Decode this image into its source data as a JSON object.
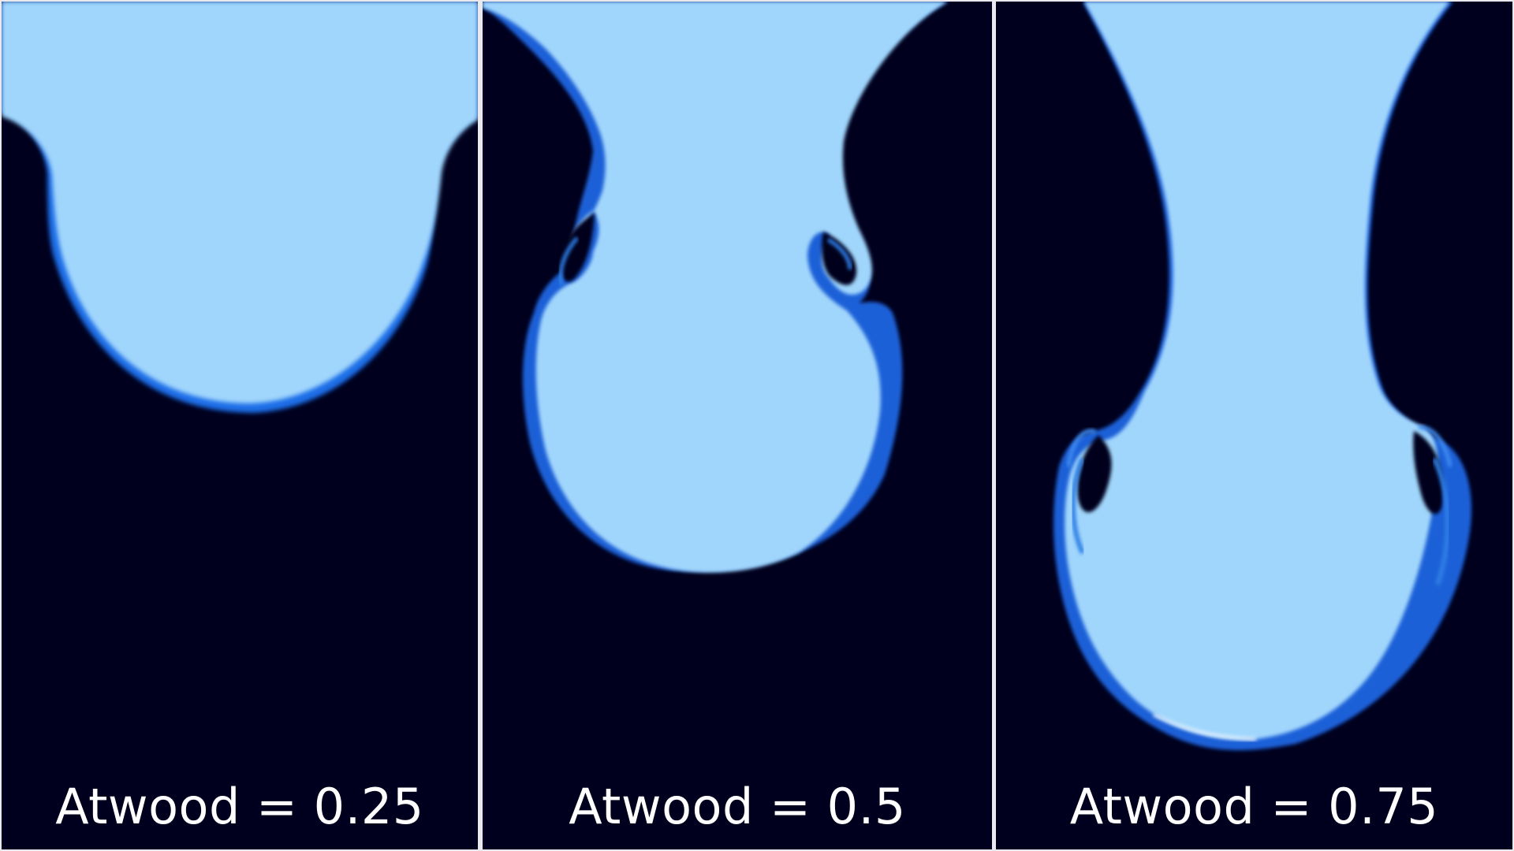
{
  "figure": {
    "colors": {
      "heavy_fluid": "#00001e",
      "light_fluid": "#a0d6fc",
      "interface_mid": "#2f7fe6",
      "interface_dark": "#0028a0",
      "separator": "#e9e9ef"
    },
    "panels": [
      {
        "caption": "Atwood = 0.25"
      },
      {
        "caption": "Atwood = 0.5"
      },
      {
        "caption": "Atwood = 0.75"
      }
    ]
  }
}
